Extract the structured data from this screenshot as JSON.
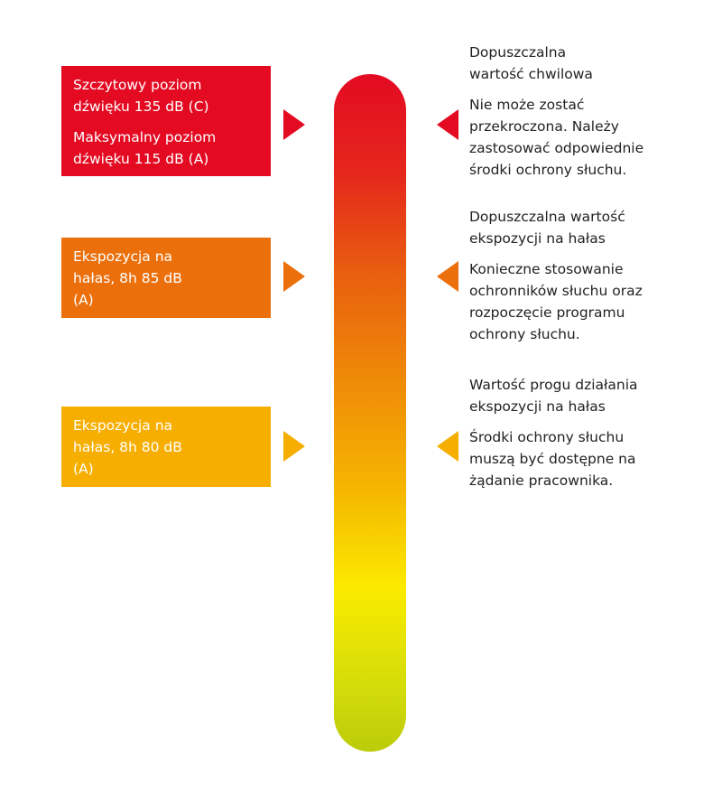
{
  "colors": {
    "red": "#e30a22",
    "orange": "#eb700c",
    "yellow": "#f6ae00"
  },
  "levels": [
    {
      "left": [
        "Szczytowy poziom dźwięku 135 dB (C)",
        "Maksymalny poziom dźwięku 115 dB (A)"
      ],
      "title": "Dopuszczalna wartość chwilowa",
      "body": "Nie może zostać przekroczona. Należy zastosować odpowiednie środki ochrony słuchu."
    },
    {
      "left": [
        "Ekspozycja na hałas, 8h 85 dB (A)"
      ],
      "title": "Dopuszczalna wartość ekspozycji na hałas",
      "body": "Konieczne stosowanie ochronników słuchu oraz rozpoczęcie programu ochrony słuchu."
    },
    {
      "left": [
        "Ekspozycja na hałas, 8h 80 dB (A)"
      ],
      "title": "Wartość progu działania ekspozycji na hałas",
      "body": "Środki ochrony słuchu muszą być dostępne na żądanie pracownika."
    }
  ]
}
